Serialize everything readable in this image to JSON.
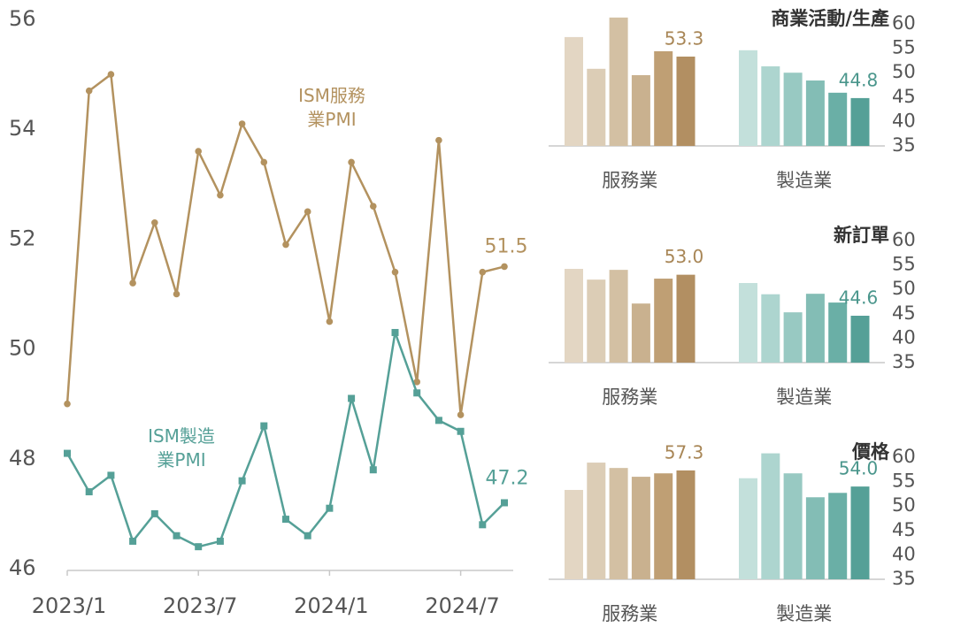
{
  "chart_data": [
    {
      "type": "line",
      "categories": [
        "2023/1",
        null,
        null,
        null,
        null,
        null,
        "2023/7",
        null,
        null,
        null,
        null,
        null,
        "2024/1",
        null,
        null,
        null,
        null,
        null,
        "2024/7",
        null,
        null
      ],
      "ylim": [
        46,
        56
      ],
      "yticks": [
        46,
        48,
        50,
        52,
        54,
        56
      ],
      "series": [
        {
          "name": "ISM服務業PMI",
          "color": "#b3925f",
          "marker": "circle",
          "values": [
            49.0,
            54.7,
            55.0,
            51.2,
            52.3,
            51.0,
            53.6,
            52.8,
            54.1,
            53.4,
            51.9,
            52.5,
            50.5,
            53.4,
            52.6,
            51.4,
            49.4,
            53.8,
            48.8,
            51.4,
            51.5
          ],
          "value_labels": [
            null,
            null,
            null,
            null,
            null,
            null,
            null,
            null,
            null,
            null,
            null,
            null,
            null,
            null,
            null,
            null,
            null,
            null,
            null,
            null,
            "51.5"
          ]
        },
        {
          "name": "ISM製造業PMI",
          "color": "#55a097",
          "marker": "square",
          "values": [
            48.1,
            47.4,
            47.7,
            46.5,
            47.0,
            46.6,
            46.4,
            46.5,
            47.6,
            48.6,
            46.9,
            46.6,
            47.1,
            49.1,
            47.8,
            50.3,
            49.2,
            48.7,
            48.5,
            46.8,
            47.2
          ],
          "value_labels": [
            null,
            null,
            null,
            null,
            null,
            null,
            null,
            null,
            null,
            null,
            null,
            null,
            null,
            null,
            null,
            null,
            null,
            null,
            null,
            null,
            "47.2"
          ]
        }
      ]
    },
    {
      "type": "bar",
      "title": "商業活動/生產",
      "ylim": [
        35,
        60
      ],
      "yticks": [
        35,
        40,
        45,
        50,
        55,
        60
      ],
      "groups": [
        {
          "name": "服務業",
          "label_color": "#a88656",
          "colors": [
            "#e3d6c3",
            "#dccdb6",
            "#d3c0a3",
            "#c9b18f",
            "#bf9f74",
            "#b28f62"
          ],
          "values": [
            57.3,
            50.8,
            61.3,
            49.5,
            54.4,
            53.3
          ],
          "value_labels": [
            null,
            null,
            null,
            null,
            null,
            "53.3"
          ]
        },
        {
          "name": "製造業",
          "label_color": "#4a968c",
          "colors": [
            "#c3e0db",
            "#add5cf",
            "#98c9c2",
            "#83bdb5",
            "#6aafa6",
            "#55a097"
          ],
          "values": [
            54.6,
            51.3,
            50.0,
            48.4,
            45.9,
            44.8
          ],
          "value_labels": [
            null,
            null,
            null,
            null,
            null,
            "44.8"
          ]
        }
      ]
    },
    {
      "type": "bar",
      "title": "新訂單",
      "ylim": [
        35,
        60
      ],
      "yticks": [
        35,
        40,
        45,
        50,
        55,
        60
      ],
      "groups": [
        {
          "name": "服務業",
          "label_color": "#a88656",
          "colors": [
            "#e3d6c3",
            "#dccdb6",
            "#d3c0a3",
            "#c9b18f",
            "#bf9f74",
            "#b28f62"
          ],
          "values": [
            54.2,
            52.0,
            54.0,
            47.1,
            52.2,
            53.0
          ],
          "value_labels": [
            null,
            null,
            null,
            null,
            null,
            "53.0"
          ]
        },
        {
          "name": "製造業",
          "label_color": "#4a968c",
          "colors": [
            "#c3e0db",
            "#add5cf",
            "#98c9c2",
            "#83bdb5",
            "#6aafa6",
            "#55a097"
          ],
          "values": [
            51.3,
            49.0,
            45.3,
            49.1,
            47.3,
            44.6
          ],
          "value_labels": [
            null,
            null,
            null,
            null,
            null,
            "44.6"
          ]
        }
      ]
    },
    {
      "type": "bar",
      "title": "價格",
      "ylim": [
        35,
        60
      ],
      "yticks": [
        35,
        40,
        45,
        50,
        55,
        60
      ],
      "groups": [
        {
          "name": "服務業",
          "label_color": "#a88656",
          "colors": [
            "#e3d6c3",
            "#dccdb6",
            "#d3c0a3",
            "#c9b18f",
            "#bf9f74",
            "#b28f62"
          ],
          "values": [
            53.3,
            58.9,
            57.8,
            56.0,
            56.7,
            57.3
          ],
          "value_labels": [
            null,
            null,
            null,
            null,
            null,
            "57.3"
          ]
        },
        {
          "name": "製造業",
          "label_color": "#4a968c",
          "colors": [
            "#c3e0db",
            "#add5cf",
            "#98c9c2",
            "#83bdb5",
            "#6aafa6",
            "#55a097"
          ],
          "values": [
            55.7,
            60.8,
            56.7,
            51.8,
            52.7,
            54.0
          ],
          "value_labels": [
            null,
            null,
            null,
            null,
            null,
            "54.0"
          ]
        }
      ]
    }
  ]
}
